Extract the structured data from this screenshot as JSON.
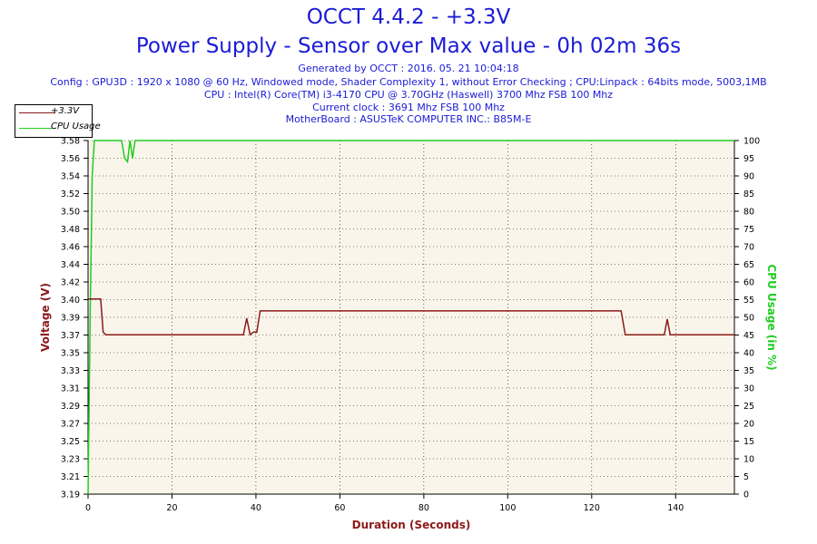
{
  "header": {
    "title": "OCCT 4.4.2 - +3.3V",
    "subtitle": "Power Supply - Sensor over Max value - 0h 02m 36s",
    "info": [
      "Generated by OCCT : 2016. 05. 21 10:04:18",
      "Config : GPU3D : 1920 x 1080 @ 60 Hz, Windowed mode, Shader Complexity 1, without Error Checking ; CPU:Linpack : 64bits mode, 5003,1MB",
      "CPU : Intel(R) Core(TM) i3-4170 CPU @ 3.70GHz (Haswell) 3700 Mhz FSB 100 Mhz",
      "Current clock : 3691 Mhz FSB 100 Mhz",
      "MotherBoard : ASUSTeK COMPUTER INC.: B85M-E"
    ]
  },
  "legend": {
    "items": [
      {
        "label": "+3.3V",
        "color": "#8b1a1a"
      },
      {
        "label": "CPU Usage",
        "color": "#22cc22"
      }
    ]
  },
  "chart_data": {
    "type": "line",
    "xlabel": "Duration (Seconds)",
    "ylabel": "Voltage (V)",
    "y2label": "CPU Usage (in %)",
    "xlim": [
      0,
      154
    ],
    "ylim": [
      3.19,
      3.576
    ],
    "y2lim": [
      0,
      100
    ],
    "x_ticks": [
      "0",
      "20",
      "40",
      "60",
      "80",
      "100",
      "120",
      "140"
    ],
    "y_ticks": [
      "3.19",
      "3.21",
      "3.23",
      "3.25",
      "3.27",
      "3.29",
      "3.31",
      "3.33",
      "3.35",
      "3.37",
      "3.39",
      "3.40",
      "3.42",
      "3.44",
      "3.46",
      "3.48",
      "3.50",
      "3.52",
      "3.54",
      "3.56",
      "3.58"
    ],
    "y2_ticks": [
      "0",
      "5",
      "10",
      "15",
      "20",
      "25",
      "30",
      "35",
      "40",
      "45",
      "50",
      "55",
      "60",
      "65",
      "70",
      "75",
      "80",
      "85",
      "90",
      "95",
      "100"
    ],
    "grid": true,
    "legend_position": "top-left",
    "colors": {
      "voltage": "#8b1a1a",
      "cpu": "#22cc22",
      "grid": "#000000",
      "plot_bg": "#faf5ea",
      "axis_title": "#8b1a1a",
      "axis_title_right": "#22cc22"
    },
    "series": [
      {
        "name": "+3.3V",
        "axis": "left",
        "x": [
          0,
          3,
          3.6,
          4.2,
          37,
          37.8,
          38.6,
          39.4,
          40.2,
          41,
          127,
          128,
          137.3,
          138,
          138.7,
          154
        ],
        "y": [
          3.403,
          3.403,
          3.367,
          3.364,
          3.364,
          3.382,
          3.364,
          3.367,
          3.367,
          3.39,
          3.39,
          3.364,
          3.364,
          3.381,
          3.364,
          3.364
        ]
      },
      {
        "name": "CPU Usage",
        "axis": "right",
        "x": [
          0,
          0.5,
          1,
          1.5,
          8,
          8.7,
          9.4,
          10,
          10.6,
          11.2,
          154
        ],
        "y": [
          0,
          50,
          90,
          100,
          100,
          95,
          94,
          100,
          95,
          100,
          100
        ]
      }
    ]
  }
}
